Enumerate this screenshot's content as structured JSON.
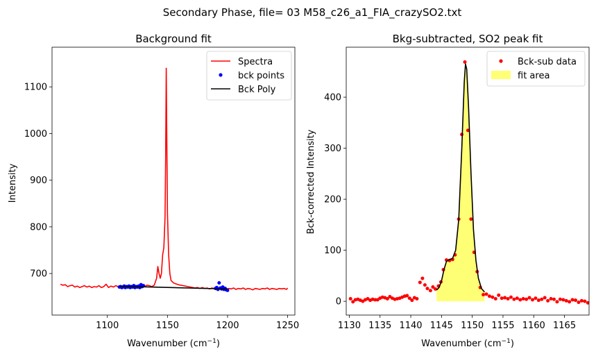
{
  "suptitle": "Secondary Phase, file= 03 M58_c26_a1_FIA_crazySO2.txt",
  "chart_data": [
    {
      "type": "line",
      "title": "Background fit",
      "xlabel_main": "Wavenumber (cm",
      "xlabel_sup": "−1",
      "xlabel_end": ")",
      "ylabel": "Intensity",
      "xlim": [
        1054,
        1256
      ],
      "ylim": [
        611,
        1185
      ],
      "xticks": [
        1100,
        1150,
        1200,
        1250
      ],
      "yticks": [
        700,
        800,
        900,
        1000,
        1100
      ],
      "legend_position": "top-right",
      "legend": [
        "Spectra",
        "bck points",
        "Bck Poly"
      ],
      "colors": {
        "Spectra": "#ff0000",
        "bck points": "#0000ff",
        "Bck Poly": "#000000"
      },
      "series": [
        {
          "name": "Spectra",
          "style": "line",
          "points": [
            [
              1061,
              677
            ],
            [
              1063,
              675
            ],
            [
              1065,
              676
            ],
            [
              1067,
              672
            ],
            [
              1069,
              674
            ],
            [
              1071,
              675
            ],
            [
              1073,
              671
            ],
            [
              1075,
              673
            ],
            [
              1077,
              670
            ],
            [
              1079,
              672
            ],
            [
              1081,
              674
            ],
            [
              1083,
              671
            ],
            [
              1085,
              673
            ],
            [
              1087,
              670
            ],
            [
              1089,
              672
            ],
            [
              1091,
              671
            ],
            [
              1093,
              674
            ],
            [
              1095,
              670
            ],
            [
              1097,
              672
            ],
            [
              1099,
              677
            ],
            [
              1101,
              670
            ],
            [
              1103,
              673
            ],
            [
              1105,
              671
            ],
            [
              1107,
              674
            ],
            [
              1109,
              672
            ],
            [
              1111,
              671
            ],
            [
              1113,
              673
            ],
            [
              1115,
              670
            ],
            [
              1117,
              672
            ],
            [
              1119,
              671
            ],
            [
              1121,
              673
            ],
            [
              1123,
              670
            ],
            [
              1125,
              672
            ],
            [
              1127,
              671
            ],
            [
              1129,
              674
            ],
            [
              1131,
              672
            ],
            [
              1133,
              675
            ],
            [
              1135,
              674
            ],
            [
              1137,
              672
            ],
            [
              1139,
              675
            ],
            [
              1141,
              690
            ],
            [
              1142,
              715
            ],
            [
              1143,
              700
            ],
            [
              1144,
              690
            ],
            [
              1145,
              700
            ],
            [
              1146,
              740
            ],
            [
              1147,
              755
            ],
            [
              1148,
              820
            ],
            [
              1148.5,
              950
            ],
            [
              1149,
              1140
            ],
            [
              1149.5,
              980
            ],
            [
              1150,
              830
            ],
            [
              1151,
              740
            ],
            [
              1152,
              700
            ],
            [
              1153,
              685
            ],
            [
              1155,
              680
            ],
            [
              1157,
              678
            ],
            [
              1159,
              676
            ],
            [
              1161,
              675
            ],
            [
              1163,
              674
            ],
            [
              1165,
              673
            ],
            [
              1167,
              672
            ],
            [
              1169,
              671
            ],
            [
              1171,
              670
            ],
            [
              1173,
              669
            ],
            [
              1175,
              670
            ],
            [
              1177,
              668
            ],
            [
              1179,
              670
            ],
            [
              1181,
              668
            ],
            [
              1183,
              669
            ],
            [
              1185,
              667
            ],
            [
              1187,
              669
            ],
            [
              1189,
              668
            ],
            [
              1191,
              667
            ],
            [
              1193,
              669
            ],
            [
              1195,
              667
            ],
            [
              1197,
              668
            ],
            [
              1199,
              666
            ],
            [
              1201,
              668
            ],
            [
              1203,
              667
            ],
            [
              1205,
              669
            ],
            [
              1207,
              666
            ],
            [
              1209,
              668
            ],
            [
              1211,
              667
            ],
            [
              1213,
              669
            ],
            [
              1215,
              666
            ],
            [
              1217,
              668
            ],
            [
              1219,
              667
            ],
            [
              1221,
              665
            ],
            [
              1223,
              668
            ],
            [
              1225,
              667
            ],
            [
              1227,
              666
            ],
            [
              1229,
              668
            ],
            [
              1231,
              667
            ],
            [
              1233,
              669
            ],
            [
              1235,
              666
            ],
            [
              1237,
              668
            ],
            [
              1239,
              667
            ],
            [
              1241,
              666
            ],
            [
              1243,
              668
            ],
            [
              1245,
              667
            ],
            [
              1247,
              668
            ],
            [
              1249,
              666
            ],
            [
              1250,
              669
            ]
          ]
        },
        {
          "name": "bck points",
          "style": "markers",
          "points": [
            [
              1110,
              671
            ],
            [
              1111,
              672
            ],
            [
              1112,
              670
            ],
            [
              1113,
              671
            ],
            [
              1114,
              673
            ],
            [
              1115,
              670
            ],
            [
              1116,
              672
            ],
            [
              1117,
              671
            ],
            [
              1118,
              673
            ],
            [
              1119,
              670
            ],
            [
              1120,
              672
            ],
            [
              1121,
              671
            ],
            [
              1122,
              674
            ],
            [
              1123,
              670
            ],
            [
              1124,
              672
            ],
            [
              1125,
              671
            ],
            [
              1126,
              673
            ],
            [
              1127,
              670
            ],
            [
              1128,
              676
            ],
            [
              1129,
              672
            ],
            [
              1130,
              674
            ],
            [
              1190,
              668
            ],
            [
              1191,
              670
            ],
            [
              1192,
              666
            ],
            [
              1193,
              680
            ],
            [
              1194,
              669
            ],
            [
              1195,
              667
            ],
            [
              1196,
              671
            ],
            [
              1197,
              666
            ],
            [
              1198,
              668
            ],
            [
              1199,
              665
            ],
            [
              1200,
              664
            ]
          ]
        },
        {
          "name": "Bck Poly",
          "style": "line",
          "points": [
            [
              1110,
              672.5
            ],
            [
              1130,
              671.5
            ],
            [
              1150,
              670.2
            ],
            [
              1170,
              668.8
            ],
            [
              1190,
              667.5
            ],
            [
              1200,
              666.8
            ]
          ]
        }
      ]
    },
    {
      "type": "line",
      "title": "Bkg-subtracted, SO2 peak fit",
      "xlabel_main": "Wavenumber (cm",
      "xlabel_sup": "−1",
      "xlabel_end": ")",
      "ylabel": "Bck-corrected Intensity",
      "xlim": [
        1129.5,
        1169
      ],
      "ylim": [
        -27,
        498
      ],
      "xticks": [
        1130,
        1135,
        1140,
        1145,
        1150,
        1155,
        1160,
        1165
      ],
      "yticks": [
        0,
        100,
        200,
        300,
        400
      ],
      "legend_position": "top-right",
      "legend": [
        "Bck-sub data",
        "fit area"
      ],
      "colors": {
        "Bck-sub data": "#ff0000",
        "fit area": "#ffff66",
        "fit line": "#000000"
      },
      "series": [
        {
          "name": "Bck-sub data",
          "style": "markers",
          "points": [
            [
              1130.2,
              5
            ],
            [
              1130.6,
              -1
            ],
            [
              1131.0,
              3
            ],
            [
              1131.4,
              4
            ],
            [
              1131.8,
              2
            ],
            [
              1132.2,
              0
            ],
            [
              1132.6,
              3
            ],
            [
              1133.0,
              5
            ],
            [
              1133.4,
              2
            ],
            [
              1133.8,
              4
            ],
            [
              1134.2,
              3
            ],
            [
              1134.6,
              3
            ],
            [
              1135.0,
              6
            ],
            [
              1135.4,
              8
            ],
            [
              1135.8,
              7
            ],
            [
              1136.2,
              5
            ],
            [
              1136.6,
              9
            ],
            [
              1137.0,
              6
            ],
            [
              1137.4,
              4
            ],
            [
              1137.8,
              5
            ],
            [
              1138.2,
              6
            ],
            [
              1138.6,
              8
            ],
            [
              1139.0,
              10
            ],
            [
              1139.4,
              11
            ],
            [
              1139.8,
              6
            ],
            [
              1140.2,
              2
            ],
            [
              1140.6,
              7
            ],
            [
              1141.0,
              5
            ],
            [
              1141.5,
              37
            ],
            [
              1141.9,
              45
            ],
            [
              1142.3,
              32
            ],
            [
              1142.7,
              25
            ],
            [
              1143.2,
              21
            ],
            [
              1143.6,
              28
            ],
            [
              1144.0,
              24
            ],
            [
              1144.5,
              30
            ],
            [
              1144.9,
              38
            ],
            [
              1145.3,
              62
            ],
            [
              1145.8,
              81
            ],
            [
              1146.3,
              80
            ],
            [
              1146.8,
              82
            ],
            [
              1147.2,
              91
            ],
            [
              1147.8,
              161
            ],
            [
              1148.3,
              327
            ],
            [
              1148.8,
              469
            ],
            [
              1149.3,
              335
            ],
            [
              1149.8,
              161
            ],
            [
              1150.3,
              96
            ],
            [
              1150.8,
              58
            ],
            [
              1151.3,
              27
            ],
            [
              1151.8,
              13
            ],
            [
              1152.3,
              14
            ],
            [
              1152.8,
              10
            ],
            [
              1153.3,
              8
            ],
            [
              1153.8,
              5
            ],
            [
              1154.3,
              12
            ],
            [
              1154.8,
              6
            ],
            [
              1155.3,
              7
            ],
            [
              1155.8,
              5
            ],
            [
              1156.3,
              8
            ],
            [
              1156.8,
              4
            ],
            [
              1157.3,
              6
            ],
            [
              1157.8,
              3
            ],
            [
              1158.3,
              5
            ],
            [
              1158.8,
              4
            ],
            [
              1159.3,
              7
            ],
            [
              1159.8,
              3
            ],
            [
              1160.3,
              6
            ],
            [
              1160.8,
              2
            ],
            [
              1161.3,
              4
            ],
            [
              1161.8,
              7
            ],
            [
              1162.3,
              1
            ],
            [
              1162.8,
              5
            ],
            [
              1163.3,
              4
            ],
            [
              1163.8,
              -1
            ],
            [
              1164.3,
              4
            ],
            [
              1164.8,
              3
            ],
            [
              1165.3,
              1
            ],
            [
              1165.8,
              -1
            ],
            [
              1166.3,
              3
            ],
            [
              1166.8,
              2
            ],
            [
              1167.3,
              -2
            ],
            [
              1167.8,
              1
            ],
            [
              1168.3,
              0
            ],
            [
              1168.8,
              -3
            ]
          ]
        },
        {
          "name": "fit line",
          "style": "line",
          "points": [
            [
              1144.2,
              22
            ],
            [
              1144.6,
              27
            ],
            [
              1145.0,
              40
            ],
            [
              1145.4,
              62
            ],
            [
              1145.8,
              78
            ],
            [
              1146.3,
              82
            ],
            [
              1146.8,
              84
            ],
            [
              1147.3,
              100
            ],
            [
              1147.8,
              160
            ],
            [
              1148.3,
              300
            ],
            [
              1148.7,
              430
            ],
            [
              1148.9,
              465
            ],
            [
              1149.1,
              455
            ],
            [
              1149.4,
              380
            ],
            [
              1149.8,
              250
            ],
            [
              1150.2,
              140
            ],
            [
              1150.6,
              80
            ],
            [
              1151.0,
              45
            ],
            [
              1151.5,
              25
            ],
            [
              1152.0,
              18
            ]
          ]
        }
      ]
    }
  ]
}
